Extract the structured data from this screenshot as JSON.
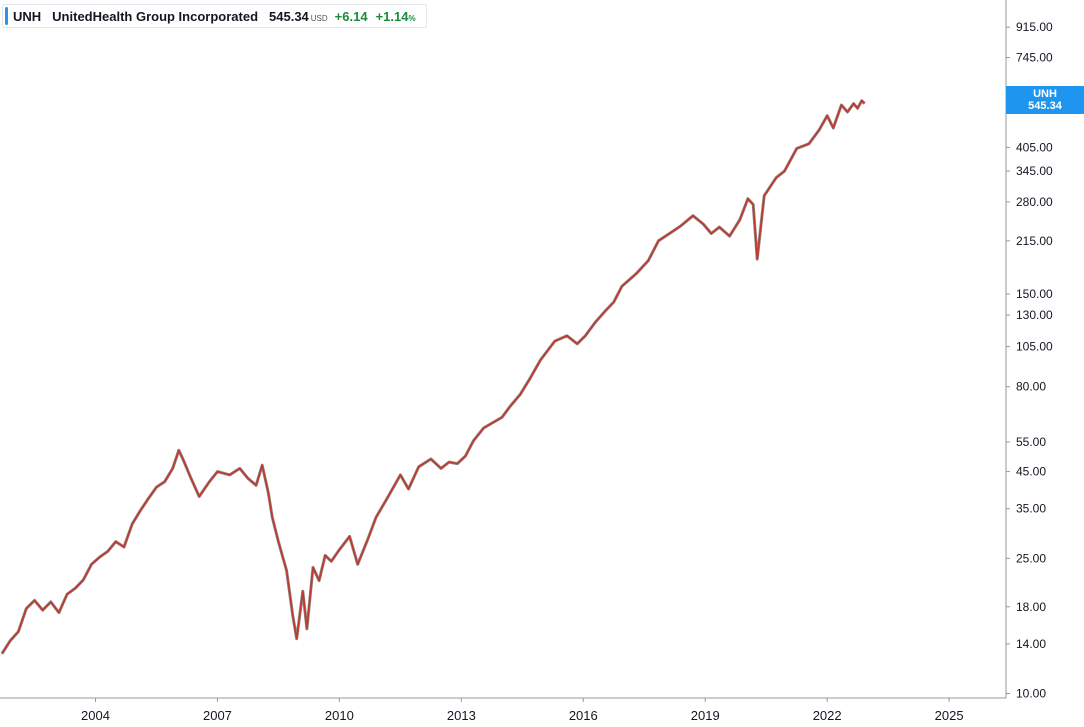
{
  "legend": {
    "symbol": "UNH",
    "name": "UnitedHealth Group Incorporated",
    "price": "545.34",
    "currency": "USD",
    "change": "+6.14",
    "change_pct": "+1.14",
    "pct_sign": "%"
  },
  "price_tag": {
    "symbol": "UNH",
    "price": "545.34"
  },
  "colors": {
    "line": "#c0392b",
    "line_dark": "#3d1f1f",
    "tag": "#1e96f0",
    "positive": "#1d8a3c",
    "axis": "#9598a1"
  },
  "chart_data": {
    "type": "line",
    "title": "",
    "xlabel": "",
    "ylabel": "",
    "y_scale": "log",
    "x_ticks": [
      "2004",
      "2007",
      "2010",
      "2013",
      "2016",
      "2019",
      "2022",
      "2025"
    ],
    "y_ticks": [
      "915.00",
      "745.00",
      "405.00",
      "345.00",
      "280.00",
      "215.00",
      "150.00",
      "130.00",
      "105.00",
      "80.00",
      "55.00",
      "45.00",
      "35.00",
      "25.00",
      "18.00",
      "14.00",
      "10.00"
    ],
    "xlim": [
      2001.65,
      2026.4
    ],
    "ylim": [
      9.7,
      1100
    ],
    "series": [
      {
        "name": "UNH",
        "points": [
          [
            2001.7,
            13.1
          ],
          [
            2001.9,
            14.3
          ],
          [
            2002.1,
            15.2
          ],
          [
            2002.3,
            17.8
          ],
          [
            2002.5,
            18.8
          ],
          [
            2002.7,
            17.6
          ],
          [
            2002.9,
            18.6
          ],
          [
            2003.1,
            17.3
          ],
          [
            2003.3,
            19.6
          ],
          [
            2003.5,
            20.4
          ],
          [
            2003.7,
            21.6
          ],
          [
            2003.9,
            24.0
          ],
          [
            2004.1,
            25.2
          ],
          [
            2004.3,
            26.2
          ],
          [
            2004.5,
            28.0
          ],
          [
            2004.7,
            27.0
          ],
          [
            2004.9,
            31.5
          ],
          [
            2005.1,
            34.5
          ],
          [
            2005.3,
            37.5
          ],
          [
            2005.5,
            40.5
          ],
          [
            2005.7,
            42.0
          ],
          [
            2005.9,
            46.0
          ],
          [
            2006.05,
            52.0
          ],
          [
            2006.15,
            49.0
          ],
          [
            2006.35,
            43.0
          ],
          [
            2006.55,
            38.0
          ],
          [
            2006.8,
            42.0
          ],
          [
            2007.0,
            45.0
          ],
          [
            2007.3,
            44.0
          ],
          [
            2007.55,
            46.0
          ],
          [
            2007.75,
            43.0
          ],
          [
            2007.95,
            41.0
          ],
          [
            2008.1,
            47.0
          ],
          [
            2008.25,
            39.0
          ],
          [
            2008.35,
            33.0
          ],
          [
            2008.5,
            28.0
          ],
          [
            2008.7,
            23.0
          ],
          [
            2008.85,
            17.0
          ],
          [
            2008.95,
            14.5
          ],
          [
            2009.1,
            20.0
          ],
          [
            2009.2,
            15.5
          ],
          [
            2009.35,
            23.5
          ],
          [
            2009.5,
            21.5
          ],
          [
            2009.65,
            25.5
          ],
          [
            2009.8,
            24.5
          ],
          [
            2010.0,
            26.5
          ],
          [
            2010.25,
            29.0
          ],
          [
            2010.45,
            24.0
          ],
          [
            2010.7,
            28.5
          ],
          [
            2010.9,
            33.0
          ],
          [
            2011.2,
            38.0
          ],
          [
            2011.5,
            44.0
          ],
          [
            2011.7,
            40.0
          ],
          [
            2011.95,
            46.5
          ],
          [
            2012.25,
            49.0
          ],
          [
            2012.5,
            46.0
          ],
          [
            2012.7,
            48.0
          ],
          [
            2012.9,
            47.5
          ],
          [
            2013.1,
            50.0
          ],
          [
            2013.3,
            55.5
          ],
          [
            2013.55,
            60.5
          ],
          [
            2013.8,
            63.0
          ],
          [
            2014.0,
            65.0
          ],
          [
            2014.2,
            70.0
          ],
          [
            2014.45,
            76.0
          ],
          [
            2014.7,
            85.0
          ],
          [
            2014.95,
            96.0
          ],
          [
            2015.3,
            109.0
          ],
          [
            2015.6,
            113.0
          ],
          [
            2015.85,
            107.0
          ],
          [
            2016.05,
            113.0
          ],
          [
            2016.3,
            124.0
          ],
          [
            2016.55,
            134.0
          ],
          [
            2016.75,
            142.0
          ],
          [
            2016.95,
            158.0
          ],
          [
            2017.3,
            172.0
          ],
          [
            2017.6,
            188.0
          ],
          [
            2017.85,
            215.0
          ],
          [
            2018.1,
            225.0
          ],
          [
            2018.4,
            238.0
          ],
          [
            2018.7,
            255.0
          ],
          [
            2018.95,
            241.0
          ],
          [
            2019.15,
            226.0
          ],
          [
            2019.35,
            236.0
          ],
          [
            2019.6,
            222.0
          ],
          [
            2019.85,
            248.0
          ],
          [
            2020.05,
            286.0
          ],
          [
            2020.18,
            275.0
          ],
          [
            2020.28,
            190.0
          ],
          [
            2020.45,
            292.0
          ],
          [
            2020.75,
            330.0
          ],
          [
            2020.95,
            345.0
          ],
          [
            2021.25,
            402.0
          ],
          [
            2021.55,
            415.0
          ],
          [
            2021.8,
            455.0
          ],
          [
            2022.0,
            502.0
          ],
          [
            2022.15,
            462.0
          ],
          [
            2022.35,
            540.0
          ],
          [
            2022.5,
            515.0
          ],
          [
            2022.65,
            545.0
          ],
          [
            2022.75,
            528.0
          ],
          [
            2022.85,
            556.0
          ],
          [
            2022.92,
            545.34
          ]
        ]
      }
    ]
  }
}
